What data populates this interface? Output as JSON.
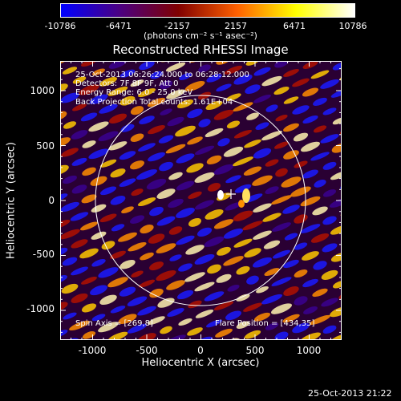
{
  "colorbar": {
    "ticks": [
      "-10786",
      "-6471",
      "-2157",
      "2157",
      "6471",
      "10786"
    ],
    "units": "(photons cm⁻² s⁻¹ asec⁻²)",
    "stops": [
      "#0000ff",
      "#4b0082",
      "#800000",
      "#ff6000",
      "#ffff00",
      "#ffffff"
    ]
  },
  "title": "Reconstructed RHESSI Image",
  "info": {
    "time_range": "25-Oct-2013 06:26:24.000 to 06:28:12.000",
    "detectors": "Detectors: 7F 8F 9F, Att 0",
    "energy_range": "Energy Range: 6.0 - 25.0 keV",
    "method": "Back Projection   Total counts: 1.61E+04",
    "spin_axis": "Spin Axis = [269,8]",
    "flare_position": "Flare Position = [434,35]"
  },
  "axes": {
    "xlabel": "Heliocentric X (arcsec)",
    "ylabel": "Heliocentric Y (arcsec)",
    "xticks": [
      "-1000",
      "-500",
      "0",
      "500",
      "1000"
    ],
    "yticks": [
      "1000",
      "500",
      "0",
      "-500",
      "-1000"
    ],
    "xlim": [
      -1300,
      1300
    ],
    "ylim": [
      -1270,
      1270
    ]
  },
  "timestamp": "25-Oct-2013 21:22"
}
